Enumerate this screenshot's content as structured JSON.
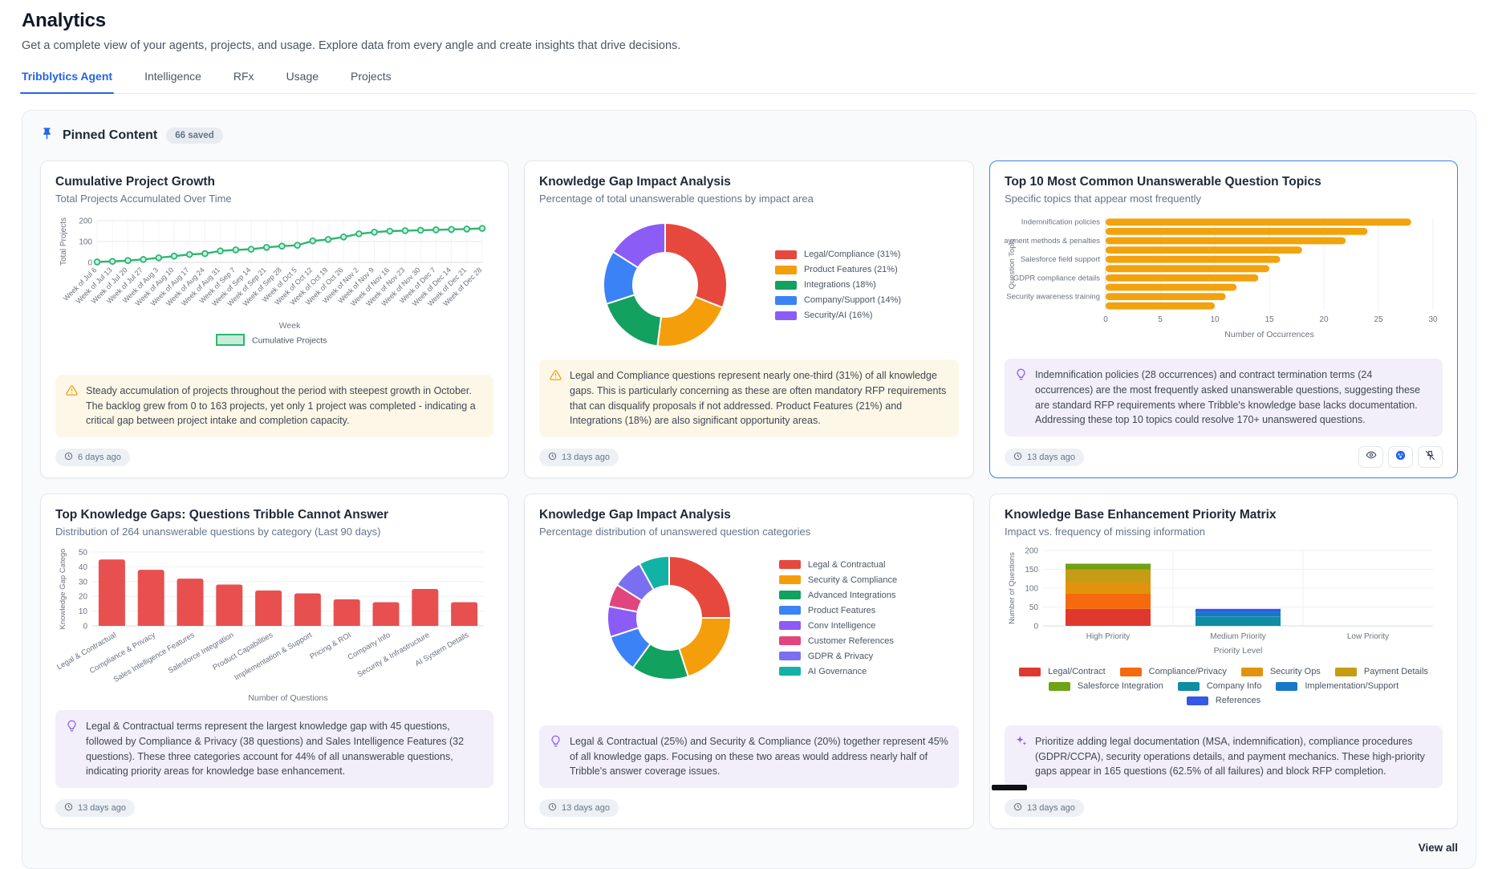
{
  "page": {
    "title": "Analytics",
    "subtitle": "Get a complete view of your agents, projects, and usage. Explore data from every angle and create insights that drive decisions."
  },
  "tabs": [
    {
      "label": "Tribblytics Agent",
      "active": true
    },
    {
      "label": "Intelligence",
      "active": false
    },
    {
      "label": "RFx",
      "active": false
    },
    {
      "label": "Usage",
      "active": false
    },
    {
      "label": "Projects",
      "active": false
    }
  ],
  "pinned": {
    "heading": "Pinned Content",
    "badge": "66 saved",
    "view_all": "View all"
  },
  "colors": {
    "accent": "#2563eb",
    "selected_card_border": "#3b82f6",
    "warning_icon": "#f59e0b",
    "insight_icon": "#8b5cf6"
  },
  "icons": {
    "header": "pin-icon",
    "annotation_warning": "warning-triangle-icon",
    "annotation_insight": "lightbulb-icon",
    "annotation_ai": "sparkles-icon",
    "timestamp": "clock-icon",
    "card_actions": [
      "eye-icon",
      "palette-icon",
      "unpin-icon"
    ]
  },
  "cards": [
    {
      "title": "Cumulative Project Growth",
      "subtitle": "Total Projects Accumulated Over Time",
      "annotation": "Steady accumulation of projects throughout the period with steepest growth in October. The backlog grew from 0 to 163 projects, yet only 1 project was completed - indicating a critical gap between project intake and completion capacity.",
      "timestamp": "6 days ago",
      "chart_data": {
        "type": "line",
        "x": [
          "Week of Jul 6",
          "Week of Jul 13",
          "Week of Jul 20",
          "Week of Jul 27",
          "Week of Aug 3",
          "Week of Aug 10",
          "Week of Aug 17",
          "Week of Aug 24",
          "Week of Aug 31",
          "Week of Sep 7",
          "Week of Sep 14",
          "Week of Sep 21",
          "Week of Sep 28",
          "Week of Oct 5",
          "Week of Oct 12",
          "Week of Oct 19",
          "Week of Oct 26",
          "Week of Nov 2",
          "Week of Nov 9",
          "Week of Nov 16",
          "Week of Nov 23",
          "Week of Nov 30",
          "Week of Dec 7",
          "Week of Dec 14",
          "Week of Dec 21",
          "Week of Dec 28"
        ],
        "values": [
          2,
          5,
          9,
          14,
          22,
          30,
          38,
          42,
          55,
          60,
          63,
          72,
          78,
          82,
          103,
          110,
          122,
          137,
          145,
          150,
          152,
          154,
          156,
          158,
          160,
          163
        ],
        "xlabel": "Week",
        "ylabel": "Total Projects",
        "ylim": [
          0,
          200
        ],
        "yticks": [
          0,
          100,
          200
        ],
        "legend": "Cumulative Projects",
        "color": "#2bb673"
      }
    },
    {
      "title": "Knowledge Gap Impact Analysis",
      "subtitle": "Percentage of total unanswerable questions by impact area",
      "annotation": "Legal and Compliance questions represent nearly one-third (31%) of all knowledge gaps. This is particularly concerning as these are often mandatory RFP requirements that can disqualify proposals if not addressed. Product Features (21%) and Integrations (18%) are also significant opportunity areas.",
      "timestamp": "13 days ago",
      "chart_data": {
        "type": "donut",
        "labels": [
          "Legal/Compliance (31%)",
          "Product Features (21%)",
          "Integrations (18%)",
          "Company/Support (14%)",
          "Security/AI (16%)"
        ],
        "values": [
          31,
          21,
          18,
          14,
          16
        ],
        "colors": [
          "#e6483d",
          "#f59e0b",
          "#12a15e",
          "#3b82f6",
          "#8b5cf6"
        ]
      }
    },
    {
      "title": "Top 10 Most Common Unanswerable Question Topics",
      "subtitle": "Specific topics that appear most frequently",
      "selected": true,
      "annotation": "Indemnification policies (28 occurrences) and contract termination terms (24 occurrences) are the most frequently asked unanswerable questions, suggesting these are standard RFP requirements where Tribble's knowledge base lacks documentation. Addressing these top 10 topics could resolve 170+ unanswered questions.",
      "timestamp": "13 days ago",
      "chart_data": {
        "type": "hbar",
        "categories": [
          "Indemnification policies",
          "",
          "Payment methods & penalties",
          "",
          "Salesforce field support",
          "",
          "GDPR compliance details",
          "",
          "Security awareness training",
          ""
        ],
        "values": [
          28,
          24,
          22,
          18,
          16,
          15,
          14,
          12,
          11,
          10
        ],
        "xlabel": "Number of Occurrences",
        "ylabel": "Question Topic",
        "xticks": [
          0,
          5,
          10,
          15,
          20,
          25,
          30
        ],
        "xlim": [
          0,
          30
        ],
        "color": "#f2a20d"
      }
    },
    {
      "title": "Top Knowledge Gaps: Questions Tribble Cannot Answer",
      "subtitle": "Distribution of 264 unanswerable questions by category (Last 90 days)",
      "annotation": "Legal & Contractual terms represent the largest knowledge gap with 45 questions, followed by Compliance & Privacy (38 questions) and Sales Intelligence Features (32 questions). These three categories account for 44% of all unanswerable questions, indicating priority areas for knowledge base enhancement.",
      "timestamp": "13 days ago",
      "chart_data": {
        "type": "bar",
        "categories": [
          "Legal & Contractual",
          "Compliance & Privacy",
          "Sales Intelligence Features",
          "Salesforce Integration",
          "Product Capabilities",
          "Implementation & Support",
          "Pricing & ROI",
          "Company Info",
          "Security & Infrastructure",
          "AI System Details"
        ],
        "values": [
          45,
          38,
          32,
          28,
          24,
          22,
          18,
          16,
          25,
          16
        ],
        "xlabel": "Number of Questions",
        "ylabel": "Knowledge Gap Catego",
        "yticks": [
          0,
          10,
          20,
          30,
          40,
          50
        ],
        "ylim": [
          0,
          50
        ],
        "color": "#e85050"
      }
    },
    {
      "title": "Knowledge Gap Impact Analysis",
      "subtitle": "Percentage distribution of unanswered question categories",
      "annotation": "Legal & Contractual (25%) and Security & Compliance (20%) together represent 45% of all knowledge gaps. Focusing on these two areas would address nearly half of Tribble's answer coverage issues.",
      "timestamp": "13 days ago",
      "chart_data": {
        "type": "donut",
        "labels": [
          "Legal & Contractual",
          "Security & Compliance",
          "Advanced Integrations",
          "Product Features",
          "Conv Intelligence",
          "Customer References",
          "GDPR & Privacy",
          "AI Governance"
        ],
        "values": [
          25,
          20,
          15,
          10,
          8,
          6,
          8,
          8
        ],
        "colors": [
          "#e6483d",
          "#f59e0b",
          "#12a15e",
          "#3b82f6",
          "#8b5cf6",
          "#e1447e",
          "#7a6ff0",
          "#12b3a6"
        ]
      }
    },
    {
      "title": "Knowledge Base Enhancement Priority Matrix",
      "subtitle": "Impact vs. frequency of missing information",
      "annotation": "Prioritize adding legal documentation (MSA, indemnification), compliance procedures (GDPR/CCPA), security operations details, and payment mechanics. These high-priority gaps appear in 165 questions (62.5% of all failures) and block RFP completion.",
      "timestamp": "13 days ago",
      "chart_data": {
        "type": "stacked_bar",
        "categories": [
          "High Priority",
          "Medium Priority",
          "Low Priority"
        ],
        "xlabel": "Priority Level",
        "ylabel": "Number of Questions",
        "yticks": [
          0,
          50,
          100,
          150,
          200
        ],
        "ylim": [
          0,
          200
        ],
        "series": [
          {
            "name": "Legal/Contract",
            "color": "#e0382f",
            "values": [
              45,
              0,
              0
            ]
          },
          {
            "name": "Compliance/Privacy",
            "color": "#f56a0d",
            "values": [
              40,
              0,
              0
            ]
          },
          {
            "name": "Security Ops",
            "color": "#e3920e",
            "values": [
              30,
              0,
              0
            ]
          },
          {
            "name": "Payment Details",
            "color": "#c59c13",
            "values": [
              35,
              0,
              0
            ]
          },
          {
            "name": "Salesforce Integration",
            "color": "#6fa216",
            "values": [
              15,
              0,
              0
            ]
          },
          {
            "name": "Company Info",
            "color": "#108ca3",
            "values": [
              0,
              25,
              0
            ]
          },
          {
            "name": "Implementation/Support",
            "color": "#1878c8",
            "values": [
              0,
              12,
              0
            ]
          },
          {
            "name": "References",
            "color": "#3657e8",
            "values": [
              0,
              8,
              0
            ]
          }
        ]
      }
    }
  ]
}
